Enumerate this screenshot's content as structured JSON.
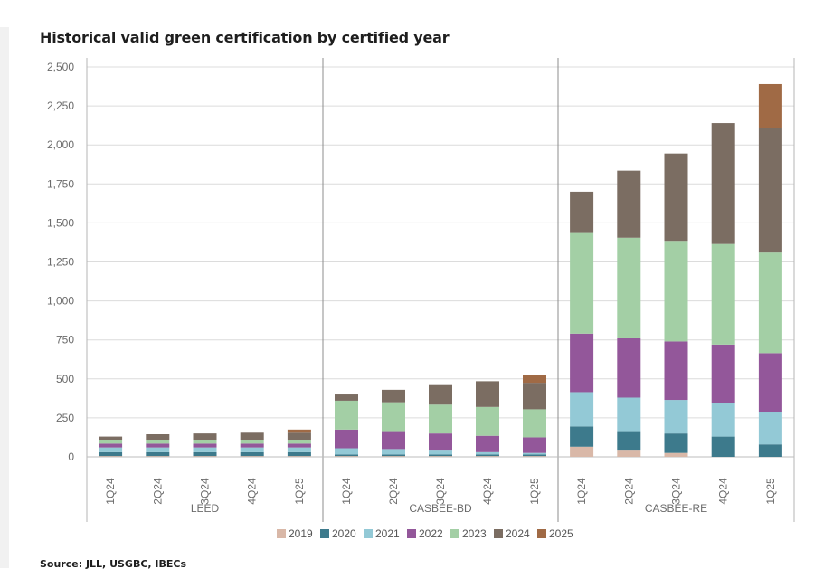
{
  "header": {
    "title": "Historical valid green certification by certified year"
  },
  "footer": {
    "source": "Source: JLL, USGBC, IBECs"
  },
  "chart_data": {
    "type": "bar",
    "stacked": true,
    "title": "Historical valid green certification by certified year",
    "ylim": [
      0,
      2500
    ],
    "y_ticks": [
      "0",
      "250",
      "500",
      "750",
      "1,000",
      "1,250",
      "1,500",
      "1,750",
      "2,000",
      "2,250",
      "2,500"
    ],
    "grid": true,
    "legend": "bottom",
    "series_names": [
      "2019",
      "2020",
      "2021",
      "2022",
      "2023",
      "2024",
      "2025"
    ],
    "colors": [
      "#d9b8a8",
      "#3d7a8c",
      "#93c9d6",
      "#93579a",
      "#a3cfa5",
      "#7b6d62",
      "#a06a45"
    ],
    "groups": [
      {
        "name": "LEED",
        "categories": [
          "1Q24",
          "2Q24",
          "3Q24",
          "4Q24",
          "1Q25"
        ],
        "series": [
          {
            "name": "2019",
            "values": [
              5,
              5,
              5,
              5,
              5
            ]
          },
          {
            "name": "2020",
            "values": [
              25,
              25,
              25,
              25,
              25
            ]
          },
          {
            "name": "2021",
            "values": [
              30,
              30,
              30,
              30,
              30
            ]
          },
          {
            "name": "2022",
            "values": [
              25,
              25,
              25,
              25,
              25
            ]
          },
          {
            "name": "2023",
            "values": [
              25,
              25,
              25,
              25,
              25
            ]
          },
          {
            "name": "2024",
            "values": [
              20,
              35,
              40,
              45,
              45
            ]
          },
          {
            "name": "2025",
            "values": [
              0,
              0,
              0,
              0,
              20
            ]
          }
        ]
      },
      {
        "name": "CASBEE-BD",
        "categories": [
          "1Q24",
          "2Q24",
          "3Q24",
          "4Q24",
          "1Q25"
        ],
        "series": [
          {
            "name": "2019",
            "values": [
              5,
              5,
              5,
              5,
              5
            ]
          },
          {
            "name": "2020",
            "values": [
              10,
              10,
              10,
              10,
              10
            ]
          },
          {
            "name": "2021",
            "values": [
              40,
              35,
              25,
              15,
              10
            ]
          },
          {
            "name": "2022",
            "values": [
              120,
              115,
              110,
              105,
              100
            ]
          },
          {
            "name": "2023",
            "values": [
              185,
              185,
              185,
              185,
              180
            ]
          },
          {
            "name": "2024",
            "values": [
              40,
              80,
              125,
              165,
              170
            ]
          },
          {
            "name": "2025",
            "values": [
              0,
              0,
              0,
              0,
              50
            ]
          }
        ]
      },
      {
        "name": "CASBEE-RE",
        "categories": [
          "1Q24",
          "2Q24",
          "3Q24",
          "4Q24",
          "1Q25"
        ],
        "series": [
          {
            "name": "2019",
            "values": [
              65,
              40,
              25,
              0,
              0
            ]
          },
          {
            "name": "2020",
            "values": [
              130,
              125,
              125,
              130,
              80
            ]
          },
          {
            "name": "2021",
            "values": [
              220,
              215,
              215,
              215,
              210
            ]
          },
          {
            "name": "2022",
            "values": [
              375,
              380,
              375,
              375,
              375
            ]
          },
          {
            "name": "2023",
            "values": [
              645,
              645,
              645,
              645,
              645
            ]
          },
          {
            "name": "2024",
            "values": [
              265,
              430,
              560,
              775,
              800
            ]
          },
          {
            "name": "2025",
            "values": [
              0,
              0,
              0,
              0,
              280
            ]
          }
        ]
      }
    ]
  }
}
